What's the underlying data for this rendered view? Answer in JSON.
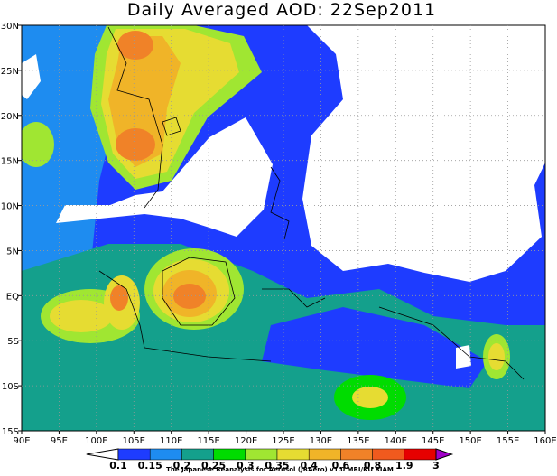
{
  "title": "Daily Averaged AOD: 22Sep2011",
  "map": {
    "lon_labels": [
      "90E",
      "95E",
      "100E",
      "105E",
      "110E",
      "115E",
      "120E",
      "125E",
      "130E",
      "135E",
      "140E",
      "145E",
      "150E",
      "155E",
      "160E"
    ],
    "lat_labels": [
      "30N",
      "25N",
      "20N",
      "15N",
      "10N",
      "5N",
      "EQ",
      "5S",
      "10S",
      "15S"
    ]
  },
  "colorbar": {
    "levels": [
      0.1,
      0.15,
      0.2,
      0.25,
      0.3,
      0.35,
      0.4,
      0.6,
      0.8,
      1.9,
      3
    ],
    "colors": [
      "#ffffff",
      "#1e3cff",
      "#1e8cf0",
      "#14a08c",
      "#00dc00",
      "#a0e632",
      "#e6dc32",
      "#f0b428",
      "#f08228",
      "#f05a1e",
      "#e60000",
      "#a000c8"
    ]
  },
  "credit": "The Japanese Reanalysis for Aerosol (JRAero) v1.0 MRI/KU RIAM"
}
